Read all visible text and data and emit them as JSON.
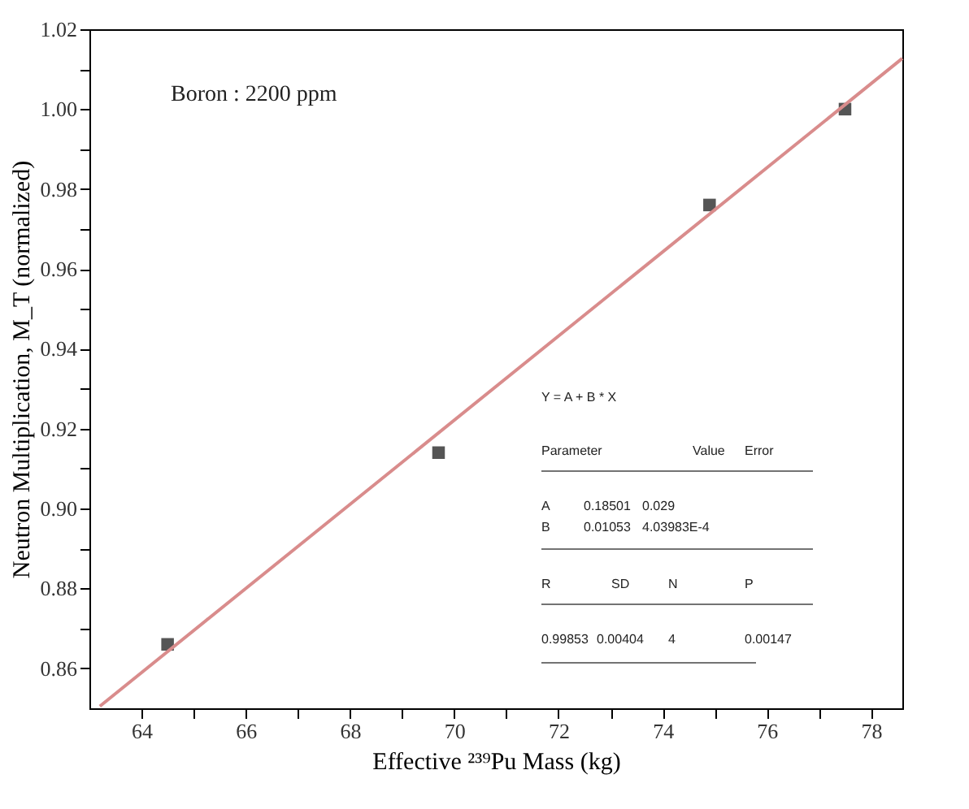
{
  "chart_data": {
    "type": "scatter",
    "xlabel": "Effective ²³⁹Pu Mass (kg)",
    "ylabel": "Neutron Multiplication, M_T (normalized)",
    "xlim": [
      63.0,
      78.6
    ],
    "ylim": [
      0.85,
      1.02
    ],
    "xticks": [
      64,
      {
        "value": 65,
        "label": null
      },
      66,
      {
        "value": 67,
        "label": null
      },
      68,
      {
        "value": 69,
        "label": null
      },
      70,
      {
        "value": 71,
        "label": null
      },
      72,
      {
        "value": 73,
        "label": null
      },
      74,
      {
        "value": 75,
        "label": null
      },
      76,
      {
        "value": 77,
        "label": null
      },
      78
    ],
    "yticks": [
      {
        "value": 0.86,
        "label": "0.86"
      },
      {
        "value": 0.87,
        "label": null
      },
      {
        "value": 0.88,
        "label": "0.88"
      },
      {
        "value": 0.89,
        "label": null
      },
      {
        "value": 0.9,
        "label": "0.90"
      },
      {
        "value": 0.91,
        "label": null
      },
      {
        "value": 0.92,
        "label": "0.92"
      },
      {
        "value": 0.93,
        "label": null
      },
      {
        "value": 0.94,
        "label": "0.94"
      },
      {
        "value": 0.95,
        "label": null
      },
      {
        "value": 0.96,
        "label": "0.96"
      },
      {
        "value": 0.97,
        "label": null
      },
      {
        "value": 0.98,
        "label": "0.98"
      },
      {
        "value": 0.99,
        "label": null
      },
      {
        "value": 1.0,
        "label": "1.00"
      },
      {
        "value": 1.01,
        "label": null
      },
      {
        "value": 1.02,
        "label": "1.02"
      }
    ],
    "grid": false,
    "series": [
      {
        "marker": "square",
        "color": "#555555",
        "x": [
          64.5,
          69.7,
          74.9,
          77.5
        ],
        "values": [
          0.866,
          0.914,
          0.976,
          1.0
        ]
      },
      {
        "type": "line",
        "line_style": "solid",
        "marker": "none",
        "color": "#d98c8c",
        "x": [
          63.2,
          78.6
        ],
        "values": [
          0.8505,
          1.0127
        ]
      }
    ],
    "annotations": [
      "Boron : 2200 ppm",
      "Y = A + B * X",
      "Parameter",
      "Value",
      "Error",
      "A",
      "0.18501",
      "0.029",
      "B",
      "0.01053",
      "4.03983E-4",
      "R",
      "SD",
      "N",
      "P",
      "0.99853",
      "0.00404",
      "4",
      "0.00147"
    ]
  }
}
